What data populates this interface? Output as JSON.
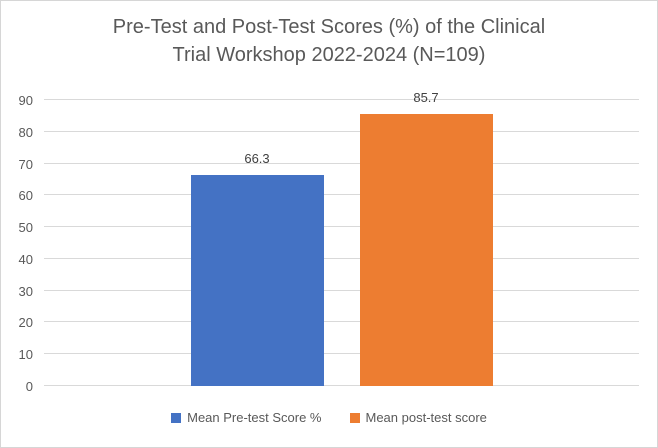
{
  "chart_data": {
    "type": "bar",
    "title": "Pre-Test and Post-Test Scores (%) of the Clinical Trial Workshop 2022-2024 (N=109)",
    "title_lines": [
      "Pre-Test and Post-Test Scores (%) of the Clinical",
      "Trial Workshop 2022-2024 (N=109)"
    ],
    "categories": [
      ""
    ],
    "series": [
      {
        "name": "Mean Pre-test Score %",
        "values": [
          66.3
        ],
        "color": "#4472C4",
        "data_label": "66.3"
      },
      {
        "name": "Mean post-test score",
        "values": [
          85.7
        ],
        "color": "#ED7D31",
        "data_label": "85.7"
      }
    ],
    "xlabel": "",
    "ylabel": "",
    "ylim": [
      0,
      90
    ],
    "yticks": [
      0,
      10,
      20,
      30,
      40,
      50,
      60,
      70,
      80,
      90
    ],
    "grid": true,
    "legend_position": "bottom"
  },
  "colors": {
    "title_text": "#595959",
    "axis_text": "#595959",
    "data_label_text": "#404040",
    "gridline": "#d9d9d9",
    "frame_border": "#d6d6d6",
    "background": "#ffffff"
  }
}
